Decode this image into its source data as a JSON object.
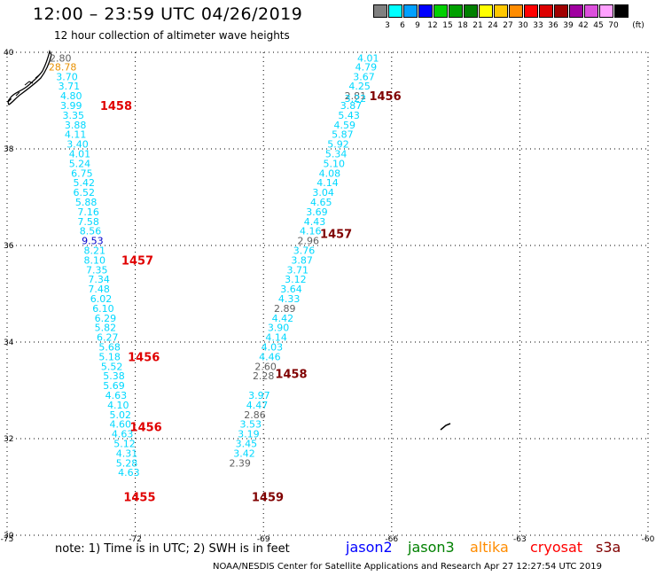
{
  "header": {
    "title": "12:00 – 23:59 UTC 04/26/2019",
    "subtitle": "12 hour collection of altimeter wave heights"
  },
  "color_scale": {
    "labels": [
      "3",
      "6",
      "9",
      "12",
      "15",
      "18",
      "21",
      "24",
      "27",
      "30",
      "33",
      "36",
      "39",
      "42",
      "45",
      "70"
    ],
    "unit": "(ft)",
    "colors": [
      "#808080",
      "#00ffff",
      "#00a0ff",
      "#0000ff",
      "#00d000",
      "#00a000",
      "#008000",
      "#ffff00",
      "#ffc800",
      "#ff8c00",
      "#ff0000",
      "#dc0000",
      "#a00000",
      "#a000a0",
      "#dc50dc",
      "#ffa0ff",
      "#000000"
    ]
  },
  "note": {
    "text": "note: 1) Time is in UTC; 2) SWH is in feet"
  },
  "satellites": [
    {
      "name": "jason2",
      "color": "#0000ff"
    },
    {
      "name": "jason3",
      "color": "#008000"
    },
    {
      "name": "altika",
      "color": "#ff8c00"
    },
    {
      "name": "cryosat",
      "color": "#ff0000"
    },
    {
      "name": "s3a",
      "color": "#800000"
    }
  ],
  "footer": {
    "text": "NOAA/NESDIS Center for Satellite Applications and Research    Apr 27 12:27:54 UTC 2019"
  },
  "chart_data": {
    "type": "map",
    "xlim": [
      -75,
      -60
    ],
    "ylim": [
      30,
      40
    ],
    "x_ticks": [
      "-75",
      "-72",
      "-69",
      "-66",
      "-63",
      "-60"
    ],
    "x_tick_values": [
      -75,
      -72,
      -69,
      -66,
      -63,
      -60
    ],
    "y_ticks": [
      "40",
      "38",
      "36",
      "34",
      "32",
      "30"
    ],
    "y_tick_values": [
      40,
      38,
      36,
      34,
      32,
      30
    ],
    "grid": true,
    "value_colors": {
      "default": "#00d8ff",
      "low": "#606060",
      "high": "#0000cc",
      "extreme": "#e89000"
    },
    "points": [
      [
        -73.75,
        39.88,
        "2.80",
        "low"
      ],
      [
        -73.7,
        39.7,
        "28.78",
        "extreme"
      ],
      [
        -73.6,
        39.5,
        "3.70",
        ""
      ],
      [
        -73.55,
        39.3,
        "3.71",
        ""
      ],
      [
        -73.5,
        39.1,
        "4.80",
        ""
      ],
      [
        -73.5,
        38.9,
        "3.99",
        ""
      ],
      [
        -73.45,
        38.7,
        "3.35",
        ""
      ],
      [
        -73.4,
        38.5,
        "3.88",
        ""
      ],
      [
        -73.4,
        38.3,
        "4.11",
        ""
      ],
      [
        -73.35,
        38.1,
        "3.40",
        ""
      ],
      [
        -73.3,
        37.9,
        "4.01",
        ""
      ],
      [
        -73.3,
        37.7,
        "5.24",
        ""
      ],
      [
        -73.25,
        37.5,
        "6.75",
        ""
      ],
      [
        -73.2,
        37.3,
        "5.42",
        ""
      ],
      [
        -73.2,
        37.1,
        "6.52",
        ""
      ],
      [
        -73.15,
        36.9,
        "5.88",
        ""
      ],
      [
        -73.1,
        36.7,
        "7.16",
        ""
      ],
      [
        -73.1,
        36.5,
        "7.58",
        ""
      ],
      [
        -73.05,
        36.3,
        "8.56",
        ""
      ],
      [
        -73.0,
        36.1,
        "9.53",
        "high"
      ],
      [
        -72.95,
        35.9,
        "8.21",
        ""
      ],
      [
        -72.95,
        35.7,
        "8.10",
        ""
      ],
      [
        -72.9,
        35.5,
        "7.35",
        ""
      ],
      [
        -72.85,
        35.3,
        "7.34",
        ""
      ],
      [
        -72.85,
        35.1,
        "7.48",
        ""
      ],
      [
        -72.8,
        34.9,
        "6.02",
        ""
      ],
      [
        -72.75,
        34.7,
        "6.10",
        ""
      ],
      [
        -72.7,
        34.5,
        "6.29",
        ""
      ],
      [
        -72.7,
        34.3,
        "5.82",
        ""
      ],
      [
        -72.65,
        34.1,
        "6.27",
        ""
      ],
      [
        -72.6,
        33.9,
        "5.68",
        ""
      ],
      [
        -72.6,
        33.7,
        "5.18",
        ""
      ],
      [
        -72.55,
        33.5,
        "5.52",
        ""
      ],
      [
        -72.5,
        33.3,
        "5.38",
        ""
      ],
      [
        -72.5,
        33.1,
        "5.69",
        ""
      ],
      [
        -72.45,
        32.9,
        "4.63",
        ""
      ],
      [
        -72.4,
        32.7,
        "4.10",
        ""
      ],
      [
        -72.35,
        32.5,
        "5.02",
        ""
      ],
      [
        -72.35,
        32.3,
        "4.60",
        ""
      ],
      [
        -72.3,
        32.1,
        "4.63",
        ""
      ],
      [
        -72.25,
        31.9,
        "5.12",
        ""
      ],
      [
        -72.2,
        31.7,
        "4.31",
        ""
      ],
      [
        -72.2,
        31.5,
        "5.28",
        ""
      ],
      [
        -72.15,
        31.3,
        "4.63",
        ""
      ],
      [
        -66.55,
        39.88,
        "4.01",
        ""
      ],
      [
        -66.6,
        39.7,
        "4.79",
        ""
      ],
      [
        -66.65,
        39.5,
        "3.67",
        ""
      ],
      [
        -66.75,
        39.3,
        "4.25",
        ""
      ],
      [
        -66.85,
        39.1,
        "2.81",
        "low"
      ],
      [
        -66.85,
        39.05,
        "3.22",
        ""
      ],
      [
        -66.95,
        38.9,
        "3.87",
        ""
      ],
      [
        -67.0,
        38.7,
        "5.43",
        ""
      ],
      [
        -67.1,
        38.5,
        "4.59",
        ""
      ],
      [
        -67.15,
        38.3,
        "5.87",
        ""
      ],
      [
        -67.25,
        38.1,
        "5.92",
        ""
      ],
      [
        -67.3,
        37.9,
        "5.34",
        ""
      ],
      [
        -67.35,
        37.7,
        "5.10",
        ""
      ],
      [
        -67.45,
        37.5,
        "4.08",
        ""
      ],
      [
        -67.5,
        37.3,
        "4.14",
        ""
      ],
      [
        -67.6,
        37.1,
        "3.04",
        ""
      ],
      [
        -67.65,
        36.9,
        "4.65",
        ""
      ],
      [
        -67.75,
        36.7,
        "3.69",
        ""
      ],
      [
        -67.8,
        36.5,
        "4.43",
        ""
      ],
      [
        -67.9,
        36.3,
        "4.16",
        ""
      ],
      [
        -67.95,
        36.1,
        "2.96",
        "low"
      ],
      [
        -68.05,
        35.9,
        "3.76",
        ""
      ],
      [
        -68.1,
        35.7,
        "3.87",
        ""
      ],
      [
        -68.2,
        35.5,
        "3.71",
        ""
      ],
      [
        -68.25,
        35.3,
        "3.12",
        ""
      ],
      [
        -68.35,
        35.1,
        "3.64",
        ""
      ],
      [
        -68.4,
        34.9,
        "4.33",
        ""
      ],
      [
        -68.5,
        34.7,
        "2.89",
        "low"
      ],
      [
        -68.55,
        34.5,
        "4.42",
        ""
      ],
      [
        -68.65,
        34.3,
        "3.90",
        ""
      ],
      [
        -68.7,
        34.1,
        "4.14",
        ""
      ],
      [
        -68.8,
        33.9,
        "4.03",
        ""
      ],
      [
        -68.85,
        33.7,
        "4.46",
        ""
      ],
      [
        -68.95,
        33.5,
        "2.60",
        "low"
      ],
      [
        -69.0,
        33.3,
        "2.28",
        "low"
      ],
      [
        -69.1,
        32.9,
        "3.97",
        ""
      ],
      [
        -69.15,
        32.7,
        "4.47",
        ""
      ],
      [
        -69.2,
        32.5,
        "2.86",
        "low"
      ],
      [
        -69.3,
        32.3,
        "3.53",
        ""
      ],
      [
        -69.35,
        32.1,
        "3.19",
        ""
      ],
      [
        -69.4,
        31.9,
        "3.45",
        ""
      ],
      [
        -69.45,
        31.7,
        "3.42",
        ""
      ],
      [
        -69.55,
        31.5,
        "2.39",
        "low"
      ]
    ],
    "time_labels": [
      {
        "text": "1458",
        "lon": -72.45,
        "lat": 38.9,
        "color": "#e00000"
      },
      {
        "text": "1457",
        "lon": -71.95,
        "lat": 35.7,
        "color": "#e00000"
      },
      {
        "text": "1456",
        "lon": -71.8,
        "lat": 33.7,
        "color": "#e00000"
      },
      {
        "text": "1456",
        "lon": -71.75,
        "lat": 32.25,
        "color": "#e00000"
      },
      {
        "text": "1455",
        "lon": -71.9,
        "lat": 30.8,
        "color": "#e00000"
      },
      {
        "text": "1456",
        "lon": -66.15,
        "lat": 39.1,
        "color": "#800000"
      },
      {
        "text": "1457",
        "lon": -67.3,
        "lat": 36.25,
        "color": "#800000"
      },
      {
        "text": "1458",
        "lon": -68.35,
        "lat": 33.35,
        "color": "#800000"
      },
      {
        "text": "1459",
        "lon": -68.9,
        "lat": 30.8,
        "color": "#800000"
      }
    ]
  }
}
